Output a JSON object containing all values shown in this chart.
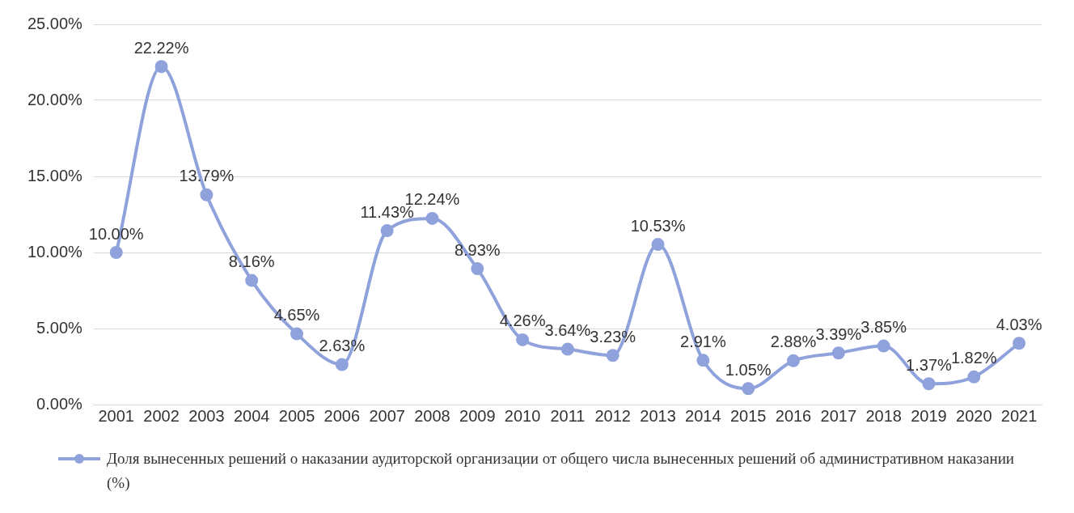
{
  "chart_data": {
    "type": "line",
    "categories": [
      "2001",
      "2002",
      "2003",
      "2004",
      "2005",
      "2006",
      "2007",
      "2008",
      "2009",
      "2010",
      "2011",
      "2012",
      "2013",
      "2014",
      "2015",
      "2016",
      "2017",
      "2018",
      "2019",
      "2020",
      "2021"
    ],
    "series": [
      {
        "name": "Доля вынесенных решений о наказании аудиторской организации от общего числа вынесенных решений об административном наказании (%)",
        "color": "#8fa2dc",
        "values": [
          10.0,
          22.22,
          13.79,
          8.16,
          4.65,
          2.63,
          11.43,
          12.24,
          8.93,
          4.26,
          3.64,
          3.23,
          10.53,
          2.91,
          1.05,
          2.88,
          3.39,
          3.85,
          1.37,
          1.82,
          4.03
        ],
        "value_labels": [
          "10.00%",
          "22.22%",
          "13.79%",
          "8.16%",
          "4.65%",
          "2.63%",
          "11.43%",
          "12.24%",
          "8.93%",
          "4.26%",
          "3.64%",
          "3.23%",
          "10.53%",
          "2.91%",
          "1.05%",
          "2.88%",
          "3.39%",
          "3.85%",
          "1.37%",
          "1.82%",
          "4.03%"
        ]
      }
    ],
    "ylim": [
      0,
      25
    ],
    "yticks": [
      {
        "value": 0,
        "label": "0.00%"
      },
      {
        "value": 5,
        "label": "5.00%"
      },
      {
        "value": 10,
        "label": "10.00%"
      },
      {
        "value": 15,
        "label": "15.00%"
      },
      {
        "value": 20,
        "label": "20.00%"
      },
      {
        "value": 25,
        "label": "25.00%"
      }
    ],
    "grid": "y",
    "legend": "bottom",
    "marker": "circle",
    "line_style": "solid"
  }
}
